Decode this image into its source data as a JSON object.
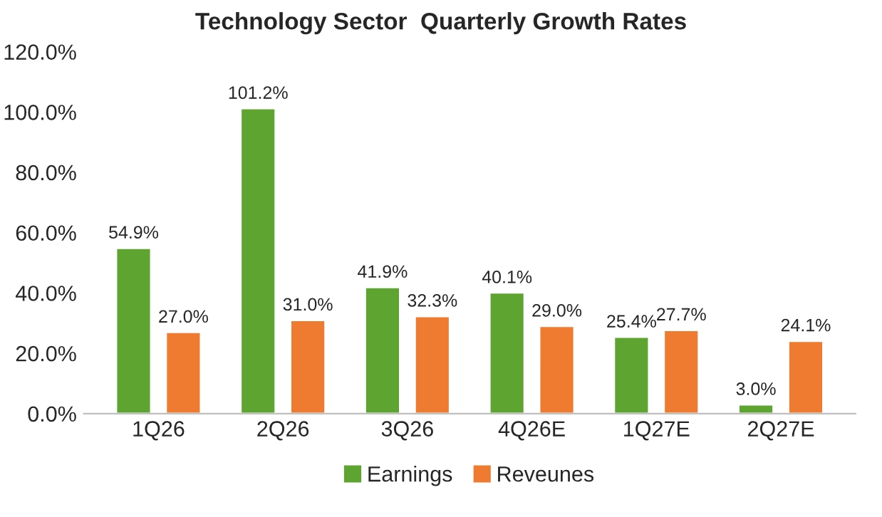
{
  "chart_data": {
    "type": "bar",
    "title": "Technology Sector  Quarterly Growth Rates",
    "categories": [
      "1Q26",
      "2Q26",
      "3Q26",
      "4Q26E",
      "1Q27E",
      "2Q27E"
    ],
    "series": [
      {
        "name": "Earnings",
        "color": "#5ea431",
        "values": [
          54.9,
          101.2,
          41.9,
          40.1,
          25.4,
          3.0
        ],
        "value_labels": [
          "54.9%",
          "101.2%",
          "41.9%",
          "40.1%",
          "25.4%",
          "3.0%"
        ]
      },
      {
        "name": "Reveunes",
        "color": "#ee7b30",
        "values": [
          27.0,
          31.0,
          32.3,
          29.0,
          27.7,
          24.1
        ],
        "value_labels": [
          "27.0%",
          "31.0%",
          "32.3%",
          "29.0%",
          "27.7%",
          "24.1%"
        ]
      }
    ],
    "ylim": [
      0,
      120
    ],
    "yticks": [
      {
        "value": 0,
        "label": "0.0%"
      },
      {
        "value": 20,
        "label": "20.0%"
      },
      {
        "value": 40,
        "label": "40.0%"
      },
      {
        "value": 60,
        "label": "60.0%"
      },
      {
        "value": 80,
        "label": "80.0%"
      },
      {
        "value": 100,
        "label": "100.0%"
      },
      {
        "value": 120,
        "label": "120.0%"
      }
    ],
    "grid": false,
    "legend": "bottom"
  }
}
